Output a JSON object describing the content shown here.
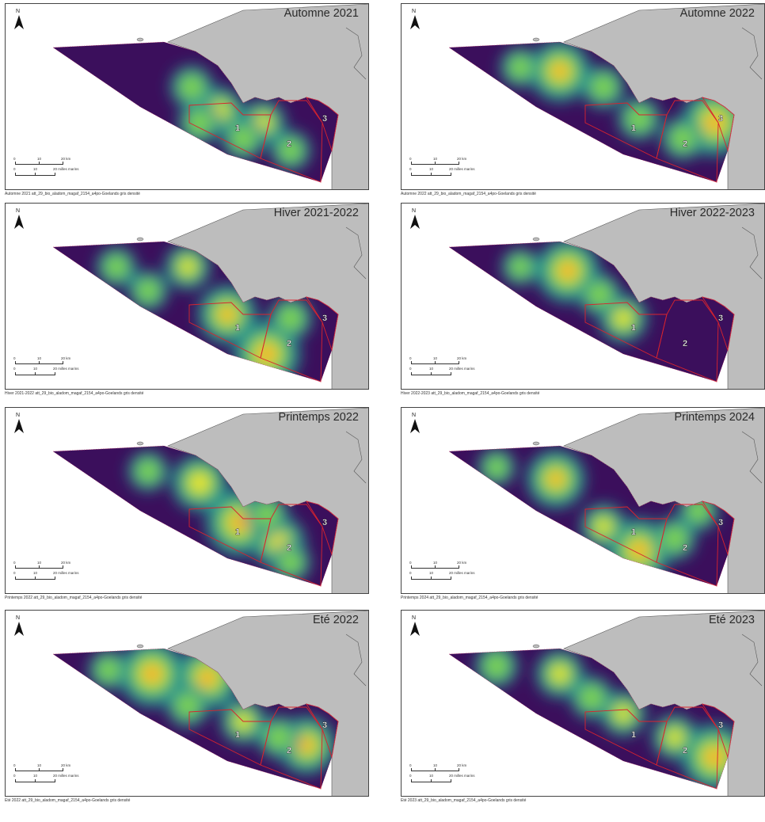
{
  "panels": [
    {
      "title": "Automne 2021",
      "caption": "Automne 2021 att_29_bio_aladom_magaf_2154_a4po-Goelands gris densité",
      "hot": [
        [
          270,
          135,
          0.6
        ],
        [
          325,
          150,
          0.55
        ],
        [
          235,
          105,
          0.5
        ],
        [
          360,
          185,
          0.45
        ],
        [
          245,
          150,
          0.5
        ],
        [
          300,
          170,
          0.5
        ]
      ]
    },
    {
      "title": "Automne 2022",
      "caption": "Automne 2022 att_29_bio_aladom_magaf_2154_a4po-Goelands gris densité",
      "hot": [
        [
          200,
          85,
          0.85
        ],
        [
          395,
          150,
          0.95
        ],
        [
          255,
          105,
          0.5
        ],
        [
          300,
          145,
          0.5
        ],
        [
          355,
          170,
          0.5
        ],
        [
          150,
          80,
          0.45
        ]
      ]
    },
    {
      "title": "Hiver 2021-2022",
      "caption": "Hiver 2021-2022 att_29_bio_aladom_magaf_2154_a4po-Goelands gris densité",
      "hot": [
        [
          330,
          190,
          0.95
        ],
        [
          280,
          140,
          0.8
        ],
        [
          230,
          80,
          0.55
        ],
        [
          140,
          80,
          0.45
        ],
        [
          180,
          110,
          0.45
        ],
        [
          360,
          145,
          0.5
        ]
      ]
    },
    {
      "title": "Hiver 2022-2023",
      "caption": "Hiver 2022-2023 att_29_bio_aladom_magaf_2154_a4po-Goelands gris densité",
      "hot": [
        [
          210,
          85,
          0.9
        ],
        [
          280,
          145,
          0.6
        ],
        [
          150,
          80,
          0.4
        ],
        [
          250,
          115,
          0.5
        ]
      ]
    },
    {
      "title": "Printemps 2022",
      "caption": "Printemps 2022 att_29_bio_aladom_magaf_2154_a4po-Goelands gris densité",
      "hot": [
        [
          295,
          145,
          0.95
        ],
        [
          245,
          95,
          0.75
        ],
        [
          345,
          170,
          0.7
        ],
        [
          180,
          80,
          0.45
        ],
        [
          330,
          135,
          0.5
        ],
        [
          360,
          195,
          0.45
        ]
      ]
    },
    {
      "title": "Printemps 2024",
      "caption": "Printemps 2024 att_29_bio_aladom_magaf_2154_a4po-Goelands gris densité",
      "hot": [
        [
          300,
          180,
          0.9
        ],
        [
          195,
          90,
          0.8
        ],
        [
          255,
          150,
          0.55
        ],
        [
          345,
          165,
          0.5
        ],
        [
          120,
          75,
          0.4
        ],
        [
          375,
          130,
          0.45
        ]
      ]
    },
    {
      "title": "Eté 2022",
      "caption": "Eté 2022 att_29_bio_aladom_magaf_2154_a4po-Goelands gris densité",
      "hot": [
        [
          185,
          80,
          0.95
        ],
        [
          255,
          85,
          0.9
        ],
        [
          380,
          170,
          0.8
        ],
        [
          300,
          140,
          0.55
        ],
        [
          345,
          160,
          0.5
        ],
        [
          130,
          75,
          0.45
        ],
        [
          230,
          120,
          0.5
        ]
      ]
    },
    {
      "title": "Eté 2023",
      "caption": "Eté 2023 att_29_bio_aladom_magaf_2154_a4po-Goelands gris densité",
      "hot": [
        [
          395,
          185,
          0.95
        ],
        [
          200,
          80,
          0.6
        ],
        [
          280,
          130,
          0.55
        ],
        [
          120,
          70,
          0.5
        ],
        [
          345,
          160,
          0.55
        ],
        [
          240,
          110,
          0.5
        ]
      ]
    }
  ],
  "zones": [
    "1",
    "2",
    "3"
  ],
  "scale": {
    "km": [
      "0",
      "10",
      "20 km"
    ],
    "nm": [
      "0",
      "10",
      "20 milles marins"
    ]
  },
  "north_label": "N",
  "colors": {
    "land": "#bdbdbd",
    "low": "#3b0f5c",
    "mid": "#21918c",
    "high": "#7ad151",
    "peak": "#fde725",
    "hot": "#f3542b",
    "zone": "#d9232d"
  }
}
